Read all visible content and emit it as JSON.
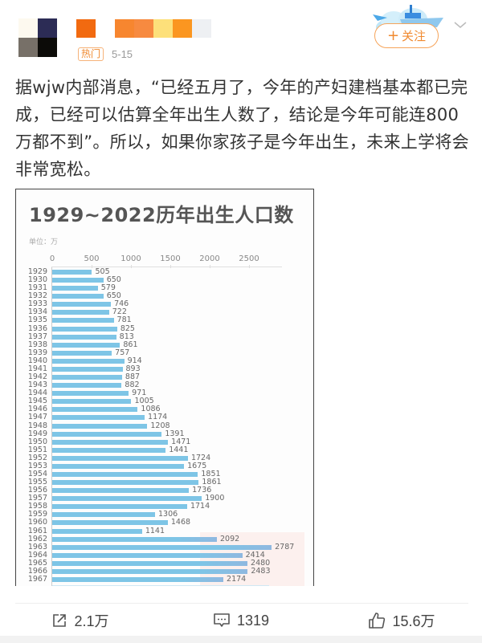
{
  "post": {
    "avatar": {
      "blocks": [
        "#fdf9ef",
        "#2c2c55",
        "#777068",
        "#0c0b08"
      ]
    },
    "username": {
      "blocks": [
        "#f26a10",
        "#ffffff",
        "#f7862f",
        "#f78a40",
        "#fde07a",
        "#fb9620",
        "#eef0f3"
      ]
    },
    "hot_badge": "热门",
    "date": "5-15",
    "follow_label": "关注",
    "follow_plus": "+",
    "text": "据wjw内部消息，“已经五月了，今年的产妇建档基本都已完成，已经可以估算全年出生人数了，结论是今年可能连800万都不到”。所以，如果你家孩子是今年出生，未来上学将会非常宽松。"
  },
  "actions": {
    "repost_count": "2.1万",
    "comment_count": "1319",
    "like_count": "15.6万"
  },
  "colors": {
    "accent_orange": "#f08a30",
    "bar_blue": "#7ec5e6"
  },
  "chart_data": {
    "type": "bar",
    "orientation": "horizontal",
    "title": "1929~2022历年出生人口数",
    "unit_label": "单位：万",
    "xlabel": "",
    "ylabel": "",
    "x_ticks": [
      "0",
      "500",
      "1000",
      "1500",
      "2000",
      "2500"
    ],
    "xlim": [
      0,
      2900
    ],
    "grid": false,
    "categories": [
      "1929",
      "1930",
      "1931",
      "1932",
      "1933",
      "1934",
      "1935",
      "1936",
      "1937",
      "1938",
      "1939",
      "1940",
      "1941",
      "1942",
      "1943",
      "1944",
      "1945",
      "1946",
      "1947",
      "1948",
      "1949",
      "1950",
      "1951",
      "1952",
      "1953",
      "1954",
      "1955",
      "1956",
      "1957",
      "1958",
      "1959",
      "1960",
      "1961",
      "1962",
      "1963",
      "1964",
      "1965",
      "1966",
      "1967"
    ],
    "values": [
      505,
      650,
      579,
      650,
      746,
      722,
      781,
      825,
      813,
      861,
      757,
      914,
      893,
      887,
      882,
      971,
      1005,
      1086,
      1174,
      1208,
      1391,
      1471,
      1441,
      1724,
      1675,
      1851,
      1861,
      1736,
      1900,
      1714,
      1306,
      1468,
      1141,
      2092,
      2787,
      2414,
      2480,
      2483,
      2174
    ]
  }
}
